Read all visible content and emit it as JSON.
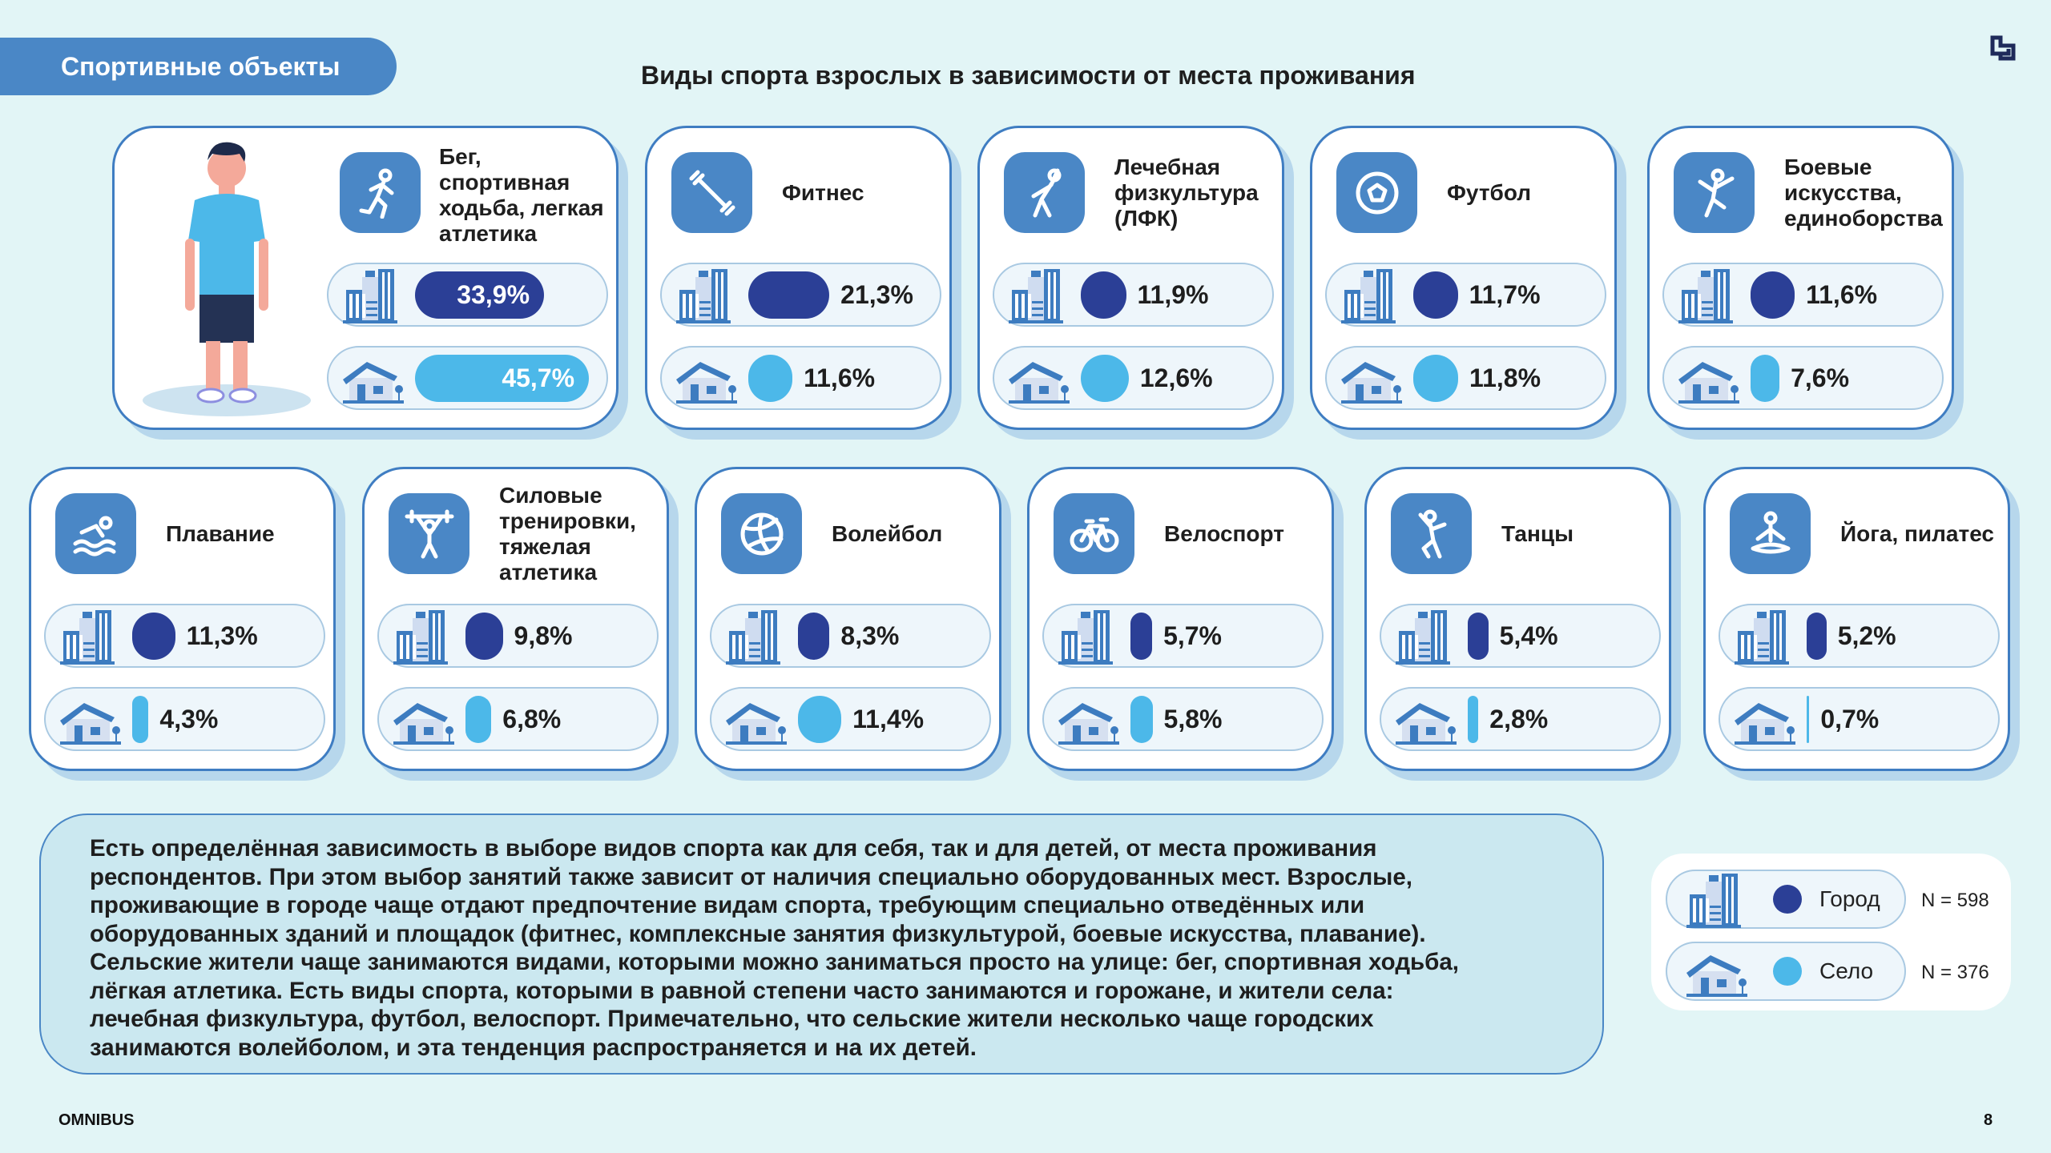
{
  "header": {
    "section": "Спортивные объекты",
    "title": "Виды спорта взрослых в зависимости от места проживания"
  },
  "colors": {
    "city": "#2b3f96",
    "village": "#4cb8e9",
    "accent": "#4a87c6"
  },
  "chart_data": {
    "type": "bar",
    "categories": [
      "Бег,\nспортивная\nходьба, легкая\nатлетика",
      "Фитнес",
      "Лечебная\nфизкультура\n(ЛФК)",
      "Футбол",
      "Боевые\nискусства,\nединоборства",
      "Плавание",
      "Силовые\nтренировки,\nтяжелая\nатлетика",
      "Волейбол",
      "Велоспорт",
      "Танцы",
      "Йога, пилатес"
    ],
    "icons": [
      "runner-icon",
      "dumbbell-icon",
      "exercise-therapy-icon",
      "football-icon",
      "martial-arts-icon",
      "swimming-icon",
      "weightlifting-icon",
      "volleyball-icon",
      "cycling-icon",
      "dance-icon",
      "yoga-icon"
    ],
    "series": [
      {
        "name": "Город",
        "values": [
          33.9,
          21.3,
          11.9,
          11.7,
          11.6,
          11.3,
          9.8,
          8.3,
          5.7,
          5.4,
          5.2
        ],
        "labels": [
          "33,9%",
          "21,3%",
          "11,9%",
          "11,7%",
          "11,6%",
          "11,3%",
          "9,8%",
          "8,3%",
          "5,7%",
          "5,4%",
          "5,2%"
        ]
      },
      {
        "name": "Село",
        "values": [
          45.7,
          11.6,
          12.6,
          11.8,
          7.6,
          4.3,
          6.8,
          11.4,
          5.8,
          2.8,
          0.7
        ],
        "labels": [
          "45,7%",
          "11,6%",
          "12,6%",
          "11,8%",
          "7,6%",
          "4,3%",
          "6,8%",
          "11,4%",
          "5,8%",
          "2,8%",
          "0,7%"
        ]
      }
    ]
  },
  "body_text": [
    "Есть определённая зависимость в выборе видов спорта как для себя, так и для детей, от места проживания",
    "респондентов. При этом выбор занятий также зависит от наличия специально оборудованных мест. Взрослые,",
    "проживающие в городе чаще отдают предпочтение видам спорта, требующим специально отведённых или",
    "оборудованных зданий и площадок (фитнес, комплексные занятия физкультурой, боевые искусства, плавание).",
    "Сельские жители чаще занимаются видами, которыми можно заниматься просто на улице: бег, спортивная ходьба,",
    "лёгкая атлетика. Есть виды спорта, которыми в равной степени часто занимаются и горожане, и жители села:",
    "лечебная физкультура, футбол, велоспорт. Примечательно, что сельские жители несколько чаще городских",
    "занимаются волейболом, и эта тенденция распространяется и на их детей."
  ],
  "legend": {
    "city_label": "Город",
    "city_n": "N = 598",
    "village_label": "Село",
    "village_n": "N = 376"
  },
  "footer": {
    "brand": "OMNIBUS",
    "page": "8"
  }
}
